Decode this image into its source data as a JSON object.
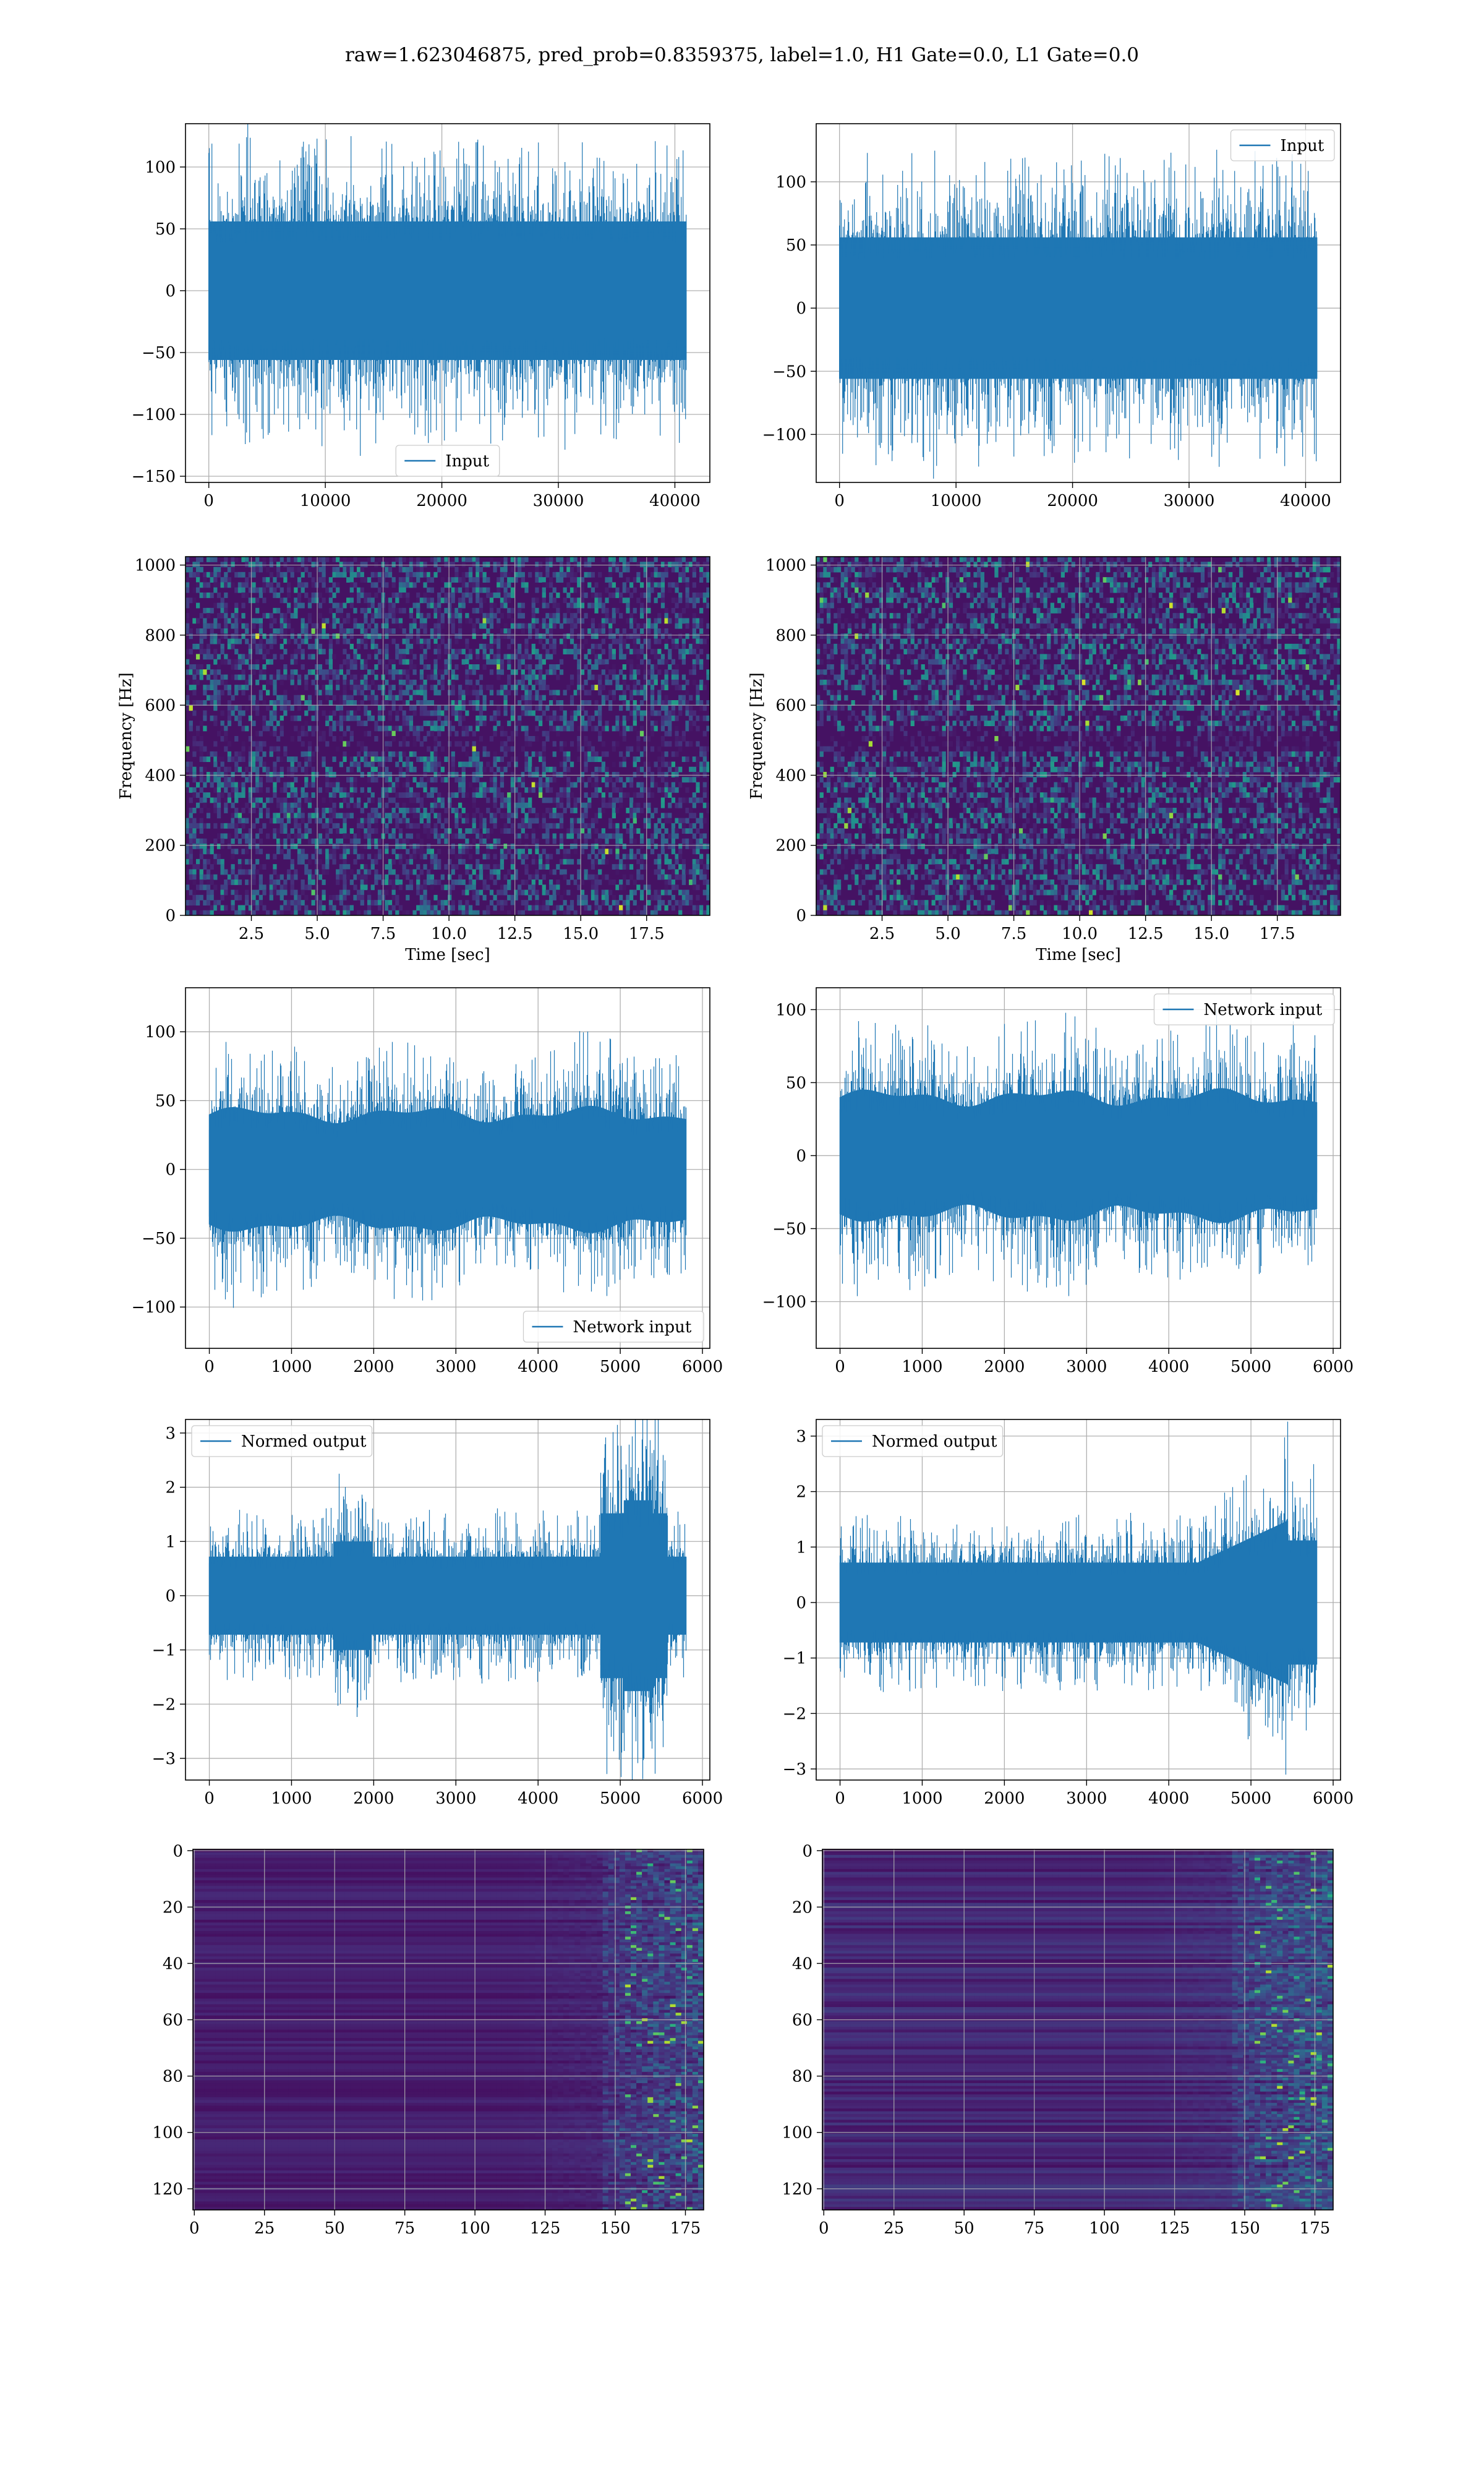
{
  "title": "raw=1.623046875, pred_prob=0.8359375, label=1.0, H1 Gate=0.0, L1 Gate=0.0",
  "colors": {
    "line": "#1f77b4",
    "grid": "#b0b0b0",
    "viridis_low": "#440154",
    "viridis_mid": "#21918c",
    "viridis_high": "#fde725"
  },
  "chart_data": [
    {
      "id": "input-h1",
      "type": "line",
      "series": [
        {
          "name": "Input",
          "n": 40960,
          "amplitude_typical": 70,
          "amplitude_peak": 140,
          "color": "#1f77b4"
        }
      ],
      "xlim": [
        -2000,
        43000
      ],
      "ylim": [
        -155,
        135
      ],
      "xticks": [
        0,
        10000,
        20000,
        30000,
        40000
      ],
      "xtick_labels": [
        "0",
        "10000",
        "20000",
        "30000",
        "40000"
      ],
      "yticks": [
        -150,
        -100,
        -50,
        0,
        50,
        100
      ],
      "ytick_labels": [
        "−150",
        "−100",
        "−50",
        "0",
        "50",
        "100"
      ],
      "xlabel": "",
      "ylabel": "",
      "legend": "lower center",
      "grid": true
    },
    {
      "id": "input-l1",
      "type": "line",
      "series": [
        {
          "name": "Input",
          "n": 40960,
          "amplitude_typical": 70,
          "amplitude_peak": 135,
          "color": "#1f77b4"
        }
      ],
      "xlim": [
        -2000,
        43000
      ],
      "ylim": [
        -138,
        146
      ],
      "xticks": [
        0,
        10000,
        20000,
        30000,
        40000
      ],
      "xtick_labels": [
        "0",
        "10000",
        "20000",
        "30000",
        "40000"
      ],
      "yticks": [
        -100,
        -50,
        0,
        50,
        100
      ],
      "ytick_labels": [
        "−100",
        "−50",
        "0",
        "50",
        "100"
      ],
      "xlabel": "",
      "ylabel": "",
      "legend": "upper right",
      "grid": true
    },
    {
      "id": "spectrogram-h1",
      "type": "heatmap",
      "xlim": [
        0,
        19.9
      ],
      "ylim": [
        0,
        1024
      ],
      "xticks": [
        2.5,
        5.0,
        7.5,
        10.0,
        12.5,
        15.0,
        17.5
      ],
      "xtick_labels": [
        "2.5",
        "5.0",
        "7.5",
        "10.0",
        "12.5",
        "15.0",
        "17.5"
      ],
      "yticks": [
        0,
        200,
        400,
        600,
        800,
        1000
      ],
      "ytick_labels": [
        "0",
        "200",
        "400",
        "600",
        "800",
        "1000"
      ],
      "xlabel": "Time [sec]",
      "ylabel": "Frequency [Hz]",
      "grid": true
    },
    {
      "id": "spectrogram-l1",
      "type": "heatmap",
      "xlim": [
        0,
        19.9
      ],
      "ylim": [
        0,
        1024
      ],
      "xticks": [
        2.5,
        5.0,
        7.5,
        10.0,
        12.5,
        15.0,
        17.5
      ],
      "xtick_labels": [
        "2.5",
        "5.0",
        "7.5",
        "10.0",
        "12.5",
        "15.0",
        "17.5"
      ],
      "yticks": [
        0,
        200,
        400,
        600,
        800,
        1000
      ],
      "ytick_labels": [
        "0",
        "200",
        "400",
        "600",
        "800",
        "1000"
      ],
      "xlabel": "Time [sec]",
      "ylabel": "Frequency [Hz]",
      "grid": true
    },
    {
      "id": "network-input-h1",
      "type": "line",
      "series": [
        {
          "name": "Network input",
          "n": 5800,
          "amplitude_typical": 50,
          "amplitude_peak": 115,
          "color": "#1f77b4"
        }
      ],
      "xlim": [
        -290,
        6090
      ],
      "ylim": [
        -130,
        132
      ],
      "xticks": [
        0,
        1000,
        2000,
        3000,
        4000,
        5000,
        6000
      ],
      "xtick_labels": [
        "0",
        "1000",
        "2000",
        "3000",
        "4000",
        "5000",
        "6000"
      ],
      "yticks": [
        -100,
        -50,
        0,
        50,
        100
      ],
      "ytick_labels": [
        "−100",
        "−50",
        "0",
        "50",
        "100"
      ],
      "xlabel": "",
      "ylabel": "",
      "legend": "lower right",
      "grid": true
    },
    {
      "id": "network-input-l1",
      "type": "line",
      "series": [
        {
          "name": "Network input",
          "n": 5800,
          "amplitude_typical": 50,
          "amplitude_peak": 120,
          "color": "#1f77b4"
        }
      ],
      "xlim": [
        -290,
        6090
      ],
      "ylim": [
        -132,
        115
      ],
      "xticks": [
        0,
        1000,
        2000,
        3000,
        4000,
        5000,
        6000
      ],
      "xtick_labels": [
        "0",
        "1000",
        "2000",
        "3000",
        "4000",
        "5000",
        "6000"
      ],
      "yticks": [
        -100,
        -50,
        0,
        50,
        100
      ],
      "ytick_labels": [
        "−100",
        "−50",
        "0",
        "50",
        "100"
      ],
      "xlabel": "",
      "ylabel": "",
      "legend": "upper right",
      "grid": true
    },
    {
      "id": "normed-output-h1",
      "type": "line",
      "series": [
        {
          "name": "Normed output",
          "n": 5800,
          "amplitude_typical": 1.0,
          "amplitude_peak": 3.1,
          "color": "#1f77b4"
        }
      ],
      "xlim": [
        -290,
        6090
      ],
      "ylim": [
        -3.4,
        3.25
      ],
      "xticks": [
        0,
        1000,
        2000,
        3000,
        4000,
        5000,
        6000
      ],
      "xtick_labels": [
        "0",
        "1000",
        "2000",
        "3000",
        "4000",
        "5000",
        "6000"
      ],
      "yticks": [
        -3,
        -2,
        -1,
        0,
        1,
        2,
        3
      ],
      "ytick_labels": [
        "−3",
        "−2",
        "−1",
        "0",
        "1",
        "2",
        "3"
      ],
      "xlabel": "",
      "ylabel": "",
      "legend": "upper left",
      "grid": true
    },
    {
      "id": "normed-output-l1",
      "type": "line",
      "series": [
        {
          "name": "Normed output",
          "n": 5800,
          "amplitude_typical": 1.0,
          "amplitude_peak": 3.0,
          "color": "#1f77b4"
        }
      ],
      "xlim": [
        -290,
        6090
      ],
      "ylim": [
        -3.2,
        3.3
      ],
      "xticks": [
        0,
        1000,
        2000,
        3000,
        4000,
        5000,
        6000
      ],
      "xtick_labels": [
        "0",
        "1000",
        "2000",
        "3000",
        "4000",
        "5000",
        "6000"
      ],
      "yticks": [
        -3,
        -2,
        -1,
        0,
        1,
        2,
        3
      ],
      "ytick_labels": [
        "−3",
        "−2",
        "−1",
        "0",
        "1",
        "2",
        "3"
      ],
      "xlabel": "",
      "ylabel": "",
      "legend": "upper left",
      "grid": true
    },
    {
      "id": "feature-map-h1",
      "type": "heatmap",
      "shape": [
        128,
        182
      ],
      "xlim": [
        -0.5,
        181.5
      ],
      "ylim": [
        127.5,
        -0.5
      ],
      "xticks": [
        0,
        25,
        50,
        75,
        100,
        125,
        150,
        175
      ],
      "xtick_labels": [
        "0",
        "25",
        "50",
        "75",
        "100",
        "125",
        "150",
        "175"
      ],
      "yticks": [
        0,
        20,
        40,
        60,
        80,
        100,
        120
      ],
      "ytick_labels": [
        "0",
        "20",
        "40",
        "60",
        "80",
        "100",
        "120"
      ],
      "xlabel": "",
      "ylabel": "",
      "grid": true
    },
    {
      "id": "feature-map-l1",
      "type": "heatmap",
      "shape": [
        128,
        182
      ],
      "xlim": [
        -0.5,
        181.5
      ],
      "ylim": [
        127.5,
        -0.5
      ],
      "xticks": [
        0,
        25,
        50,
        75,
        100,
        125,
        150,
        175
      ],
      "xtick_labels": [
        "0",
        "25",
        "50",
        "75",
        "100",
        "125",
        "150",
        "175"
      ],
      "yticks": [
        0,
        20,
        40,
        60,
        80,
        100,
        120
      ],
      "ytick_labels": [
        "0",
        "20",
        "40",
        "60",
        "80",
        "100",
        "120"
      ],
      "xlabel": "",
      "ylabel": "",
      "grid": true
    }
  ]
}
